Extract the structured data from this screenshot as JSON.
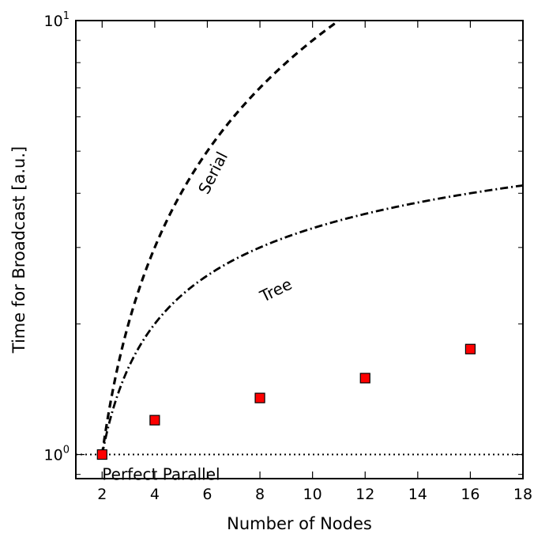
{
  "chart_data": {
    "type": "scatter",
    "title": "",
    "xlabel": "Number of Nodes",
    "ylabel": "Time for Broadcast [a.u.]",
    "xlim": [
      1,
      18
    ],
    "ylim": [
      0.88,
      10
    ],
    "yscale": "log",
    "grid": false,
    "xticks": [
      2,
      4,
      6,
      8,
      10,
      12,
      14,
      16,
      18
    ],
    "xtick_labels": [
      "2",
      "4",
      "6",
      "8",
      "10",
      "12",
      "14",
      "16",
      "18"
    ],
    "yticks": [
      {
        "value": 1,
        "base": "10",
        "exp": "0"
      },
      {
        "value": 10,
        "base": "10",
        "exp": "1"
      }
    ],
    "series": [
      {
        "name": "Serial",
        "kind": "line",
        "style": "dashed",
        "color": "#000000",
        "formula": "N-1",
        "x_range": [
          2,
          11
        ]
      },
      {
        "name": "Tree",
        "kind": "line",
        "style": "dashdot",
        "color": "#000000",
        "formula": "log2(N)",
        "x_range": [
          2,
          18
        ]
      },
      {
        "name": "Perfect Parallel",
        "kind": "line",
        "style": "dotted",
        "color": "#000000",
        "formula": "1",
        "x_range": [
          1,
          18
        ]
      },
      {
        "name": "",
        "kind": "markers",
        "marker": "square",
        "color": "#ff0000",
        "edgecolor": "#000000",
        "x": [
          2,
          4,
          8,
          12,
          16
        ],
        "y": [
          1.0,
          1.2,
          1.35,
          1.5,
          1.75
        ]
      }
    ]
  }
}
